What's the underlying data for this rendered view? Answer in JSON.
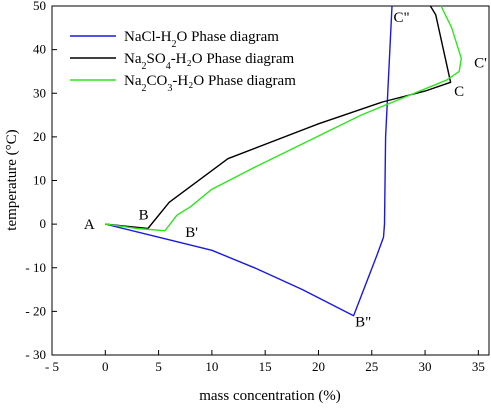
{
  "chart_data": {
    "type": "line",
    "xlabel": "mass concentration (%)",
    "ylabel": "temperature (°C)",
    "xlim": [
      -5,
      36
    ],
    "ylim": [
      -30,
      50
    ],
    "x_ticks": [
      -5,
      0,
      5,
      10,
      15,
      20,
      25,
      30,
      35
    ],
    "y_ticks": [
      -30,
      -20,
      -10,
      0,
      10,
      20,
      30,
      40,
      50
    ],
    "x_tick_labels": [
      "- 5",
      "0",
      "5",
      "10",
      "15",
      "20",
      "25",
      "30",
      "35"
    ],
    "y_tick_labels": [
      "- 30",
      "- 20",
      "- 10",
      "0",
      "10",
      "20",
      "30",
      "40",
      "50"
    ],
    "legend": {
      "position": "top-left",
      "items": [
        {
          "label_main": "NaCl-H",
          "sub1": "2",
          "mid": "O Phase diagram",
          "sub2": "",
          "tail": ""
        },
        {
          "label_main": "Na",
          "sub1": "2",
          "mid": "SO",
          "sub2": "4",
          "tail": "-H₂O Phase diagram"
        },
        {
          "label_main": "Na",
          "sub1": "2",
          "mid": "CO",
          "sub2": "3",
          "tail": "-H₂O Phase diagram"
        }
      ]
    },
    "series": [
      {
        "name": "NaCl-H2O Phase diagram",
        "color": "#1a1adf",
        "x": [
          0,
          5,
          10,
          14,
          18.5,
          23.3,
          25.5,
          26.1,
          26.2,
          26.3,
          26.9
        ],
        "y": [
          0,
          -3,
          -6,
          -10,
          -15,
          -21,
          -7,
          -3,
          0,
          20,
          50
        ]
      },
      {
        "name": "Na2SO4-H2O Phase diagram",
        "color": "#000000",
        "x": [
          0,
          4,
          6,
          11.5,
          20,
          26,
          30,
          32.4,
          31,
          30.5
        ],
        "y": [
          0,
          -1,
          5,
          15,
          23,
          28,
          30.5,
          32.5,
          48,
          50
        ]
      },
      {
        "name": "Na2CO3-H2O Phase diagram",
        "color": "#2ee61e",
        "x": [
          0,
          3,
          5.6,
          6.7,
          8,
          10,
          14,
          19,
          24,
          28,
          30.5,
          32,
          33.2,
          33.4,
          32.5,
          31.5
        ],
        "y": [
          0,
          -1,
          -1.5,
          2,
          4,
          8,
          13,
          19,
          25,
          29,
          31.5,
          33,
          35,
          38,
          45,
          50
        ]
      }
    ],
    "annotations": [
      {
        "text": "A",
        "x": -1.5,
        "y": 0
      },
      {
        "text": "B",
        "x": 3.6,
        "y": 2.2
      },
      {
        "text": "B'",
        "x": 8.1,
        "y": -1.8
      },
      {
        "text": "B\"",
        "x": 24.2,
        "y": -22.3
      },
      {
        "text": "C",
        "x": 33.2,
        "y": 30.5
      },
      {
        "text": "C'",
        "x": 35.2,
        "y": 37
      },
      {
        "text": "C\"",
        "x": 27.8,
        "y": 47.5
      }
    ]
  }
}
